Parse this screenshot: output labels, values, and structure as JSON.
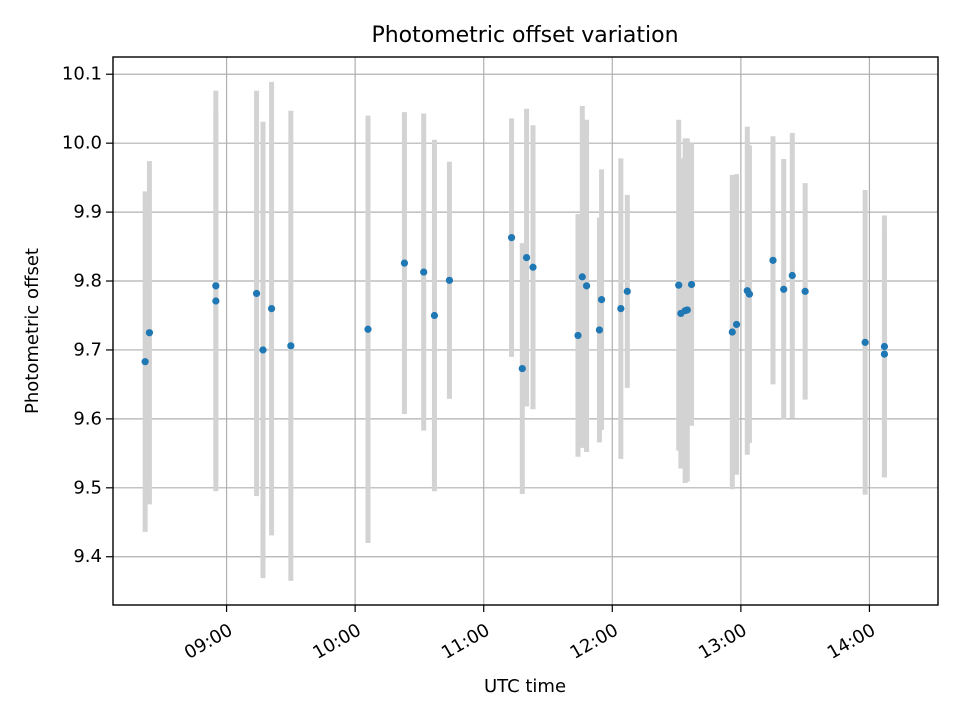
{
  "chart_data": {
    "type": "scatter",
    "title": "Photometric offset variation",
    "xlabel": "UTC time",
    "ylabel": "Photometric offset",
    "x_unit": "hours UTC",
    "xlim": [
      "08:07",
      "14:32"
    ],
    "ylim": [
      9.33,
      10.125
    ],
    "x_ticks": [
      "09:00",
      "10:00",
      "11:00",
      "12:00",
      "13:00",
      "14:00"
    ],
    "y_ticks": [
      9.4,
      9.5,
      9.6,
      9.7,
      9.8,
      9.9,
      10.0,
      10.1
    ],
    "y_tick_labels": [
      "9.4",
      "9.5",
      "9.6",
      "9.7",
      "9.8",
      "9.9",
      "10.0",
      "10.1"
    ],
    "grid": true,
    "legend": "none",
    "colors": {
      "points": "#1f77b4",
      "errorbars": "#d3d3d3",
      "grid": "#b0b0b0",
      "axes": "#000000"
    },
    "points": [
      {
        "x": "08:22",
        "y": 9.683,
        "err": 0.247
      },
      {
        "x": "08:24",
        "y": 9.725,
        "err": 0.249
      },
      {
        "x": "08:55",
        "y": 9.793,
        "err": 0.283
      },
      {
        "x": "08:55",
        "y": 9.771,
        "err": 0.276
      },
      {
        "x": "09:14",
        "y": 9.782,
        "err": 0.294
      },
      {
        "x": "09:17",
        "y": 9.7,
        "err": 0.331
      },
      {
        "x": "09:21",
        "y": 9.76,
        "err": 0.329
      },
      {
        "x": "09:30",
        "y": 9.706,
        "err": 0.341
      },
      {
        "x": "10:06",
        "y": 9.73,
        "err": 0.31
      },
      {
        "x": "10:23",
        "y": 9.826,
        "err": 0.219
      },
      {
        "x": "10:32",
        "y": 9.813,
        "err": 0.23
      },
      {
        "x": "10:37",
        "y": 9.75,
        "err": 0.255
      },
      {
        "x": "10:44",
        "y": 9.801,
        "err": 0.172
      },
      {
        "x": "11:13",
        "y": 9.863,
        "err": 0.173
      },
      {
        "x": "11:18",
        "y": 9.673,
        "err": 0.182
      },
      {
        "x": "11:20",
        "y": 9.834,
        "err": 0.216
      },
      {
        "x": "11:23",
        "y": 9.82,
        "err": 0.206
      },
      {
        "x": "11:44",
        "y": 9.721,
        "err": 0.176
      },
      {
        "x": "11:46",
        "y": 9.806,
        "err": 0.248
      },
      {
        "x": "11:48",
        "y": 9.793,
        "err": 0.241
      },
      {
        "x": "11:54",
        "y": 9.729,
        "err": 0.163
      },
      {
        "x": "11:55",
        "y": 9.773,
        "err": 0.189
      },
      {
        "x": "12:04",
        "y": 9.76,
        "err": 0.218
      },
      {
        "x": "12:07",
        "y": 9.785,
        "err": 0.14
      },
      {
        "x": "12:31",
        "y": 9.794,
        "err": 0.24
      },
      {
        "x": "12:32",
        "y": 9.753,
        "err": 0.225
      },
      {
        "x": "12:34",
        "y": 9.757,
        "err": 0.25
      },
      {
        "x": "12:35",
        "y": 9.758,
        "err": 0.249
      },
      {
        "x": "12:37",
        "y": 9.795,
        "err": 0.205
      },
      {
        "x": "12:56",
        "y": 9.726,
        "err": 0.228
      },
      {
        "x": "12:58",
        "y": 9.737,
        "err": 0.218
      },
      {
        "x": "13:03",
        "y": 9.786,
        "err": 0.238
      },
      {
        "x": "13:04",
        "y": 9.781,
        "err": 0.216
      },
      {
        "x": "13:15",
        "y": 9.83,
        "err": 0.18
      },
      {
        "x": "13:20",
        "y": 9.788,
        "err": 0.189
      },
      {
        "x": "13:24",
        "y": 9.808,
        "err": 0.207
      },
      {
        "x": "13:30",
        "y": 9.785,
        "err": 0.157
      },
      {
        "x": "13:58",
        "y": 9.711,
        "err": 0.221
      },
      {
        "x": "14:07",
        "y": 9.705,
        "err": 0.19
      },
      {
        "x": "14:07",
        "y": 9.694,
        "err": 0.179
      }
    ]
  }
}
